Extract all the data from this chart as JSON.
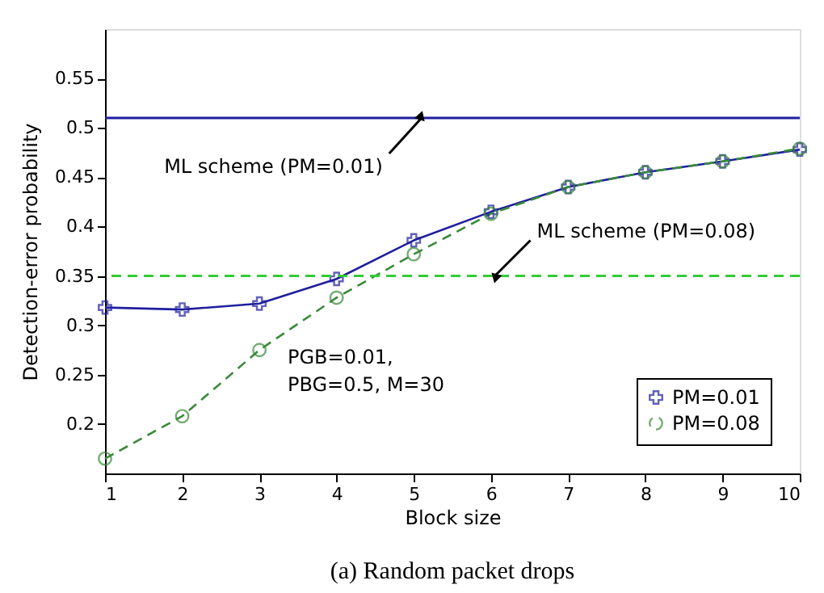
{
  "chart_data": {
    "type": "line",
    "title": "(a) Random packet drops",
    "xlabel": "Block size",
    "ylabel": "Detection-error probability",
    "x": [
      1,
      2,
      3,
      4,
      5,
      6,
      7,
      8,
      9,
      10
    ],
    "series": [
      {
        "name": "PM=0.01",
        "color": "#1f1f9e",
        "marker": "cross",
        "line_style": "solid",
        "values": [
          0.318,
          0.316,
          0.322,
          0.347,
          0.386,
          0.415,
          0.44,
          0.455,
          0.466,
          0.478
        ]
      },
      {
        "name": "PM=0.08",
        "color": "#3a8a3a",
        "marker": "circle",
        "line_style": "dashed",
        "values": [
          0.165,
          0.208,
          0.275,
          0.328,
          0.372,
          0.413,
          0.44,
          0.455,
          0.466,
          0.479
        ]
      }
    ],
    "xlim": [
      1,
      10
    ],
    "xticks": [
      1,
      2,
      3,
      4,
      5,
      6,
      7,
      8,
      9,
      10
    ],
    "ylim": [
      0.15,
      0.6
    ],
    "yticks": [
      0.2,
      0.25,
      0.3,
      0.35,
      0.4,
      0.45,
      0.5,
      0.55
    ],
    "ref_lines": [
      {
        "axis": "y",
        "value": 0.51,
        "label": null,
        "color": "#1f1f9e",
        "line_style": "solid"
      },
      {
        "axis": "y",
        "value": 0.35,
        "label": null,
        "color": "#33cc33",
        "line_style": "dashed"
      }
    ],
    "annotations": [
      {
        "text": "ML scheme (PM=0.01)",
        "x": 5.1,
        "y": 0.51
      },
      {
        "text": "ML scheme (PM=0.08)",
        "x": 6.05,
        "y": 0.35
      },
      "PGB=0.01,\nPBG=0.5, M=30"
    ],
    "grid": false,
    "legend": "bottom right"
  }
}
